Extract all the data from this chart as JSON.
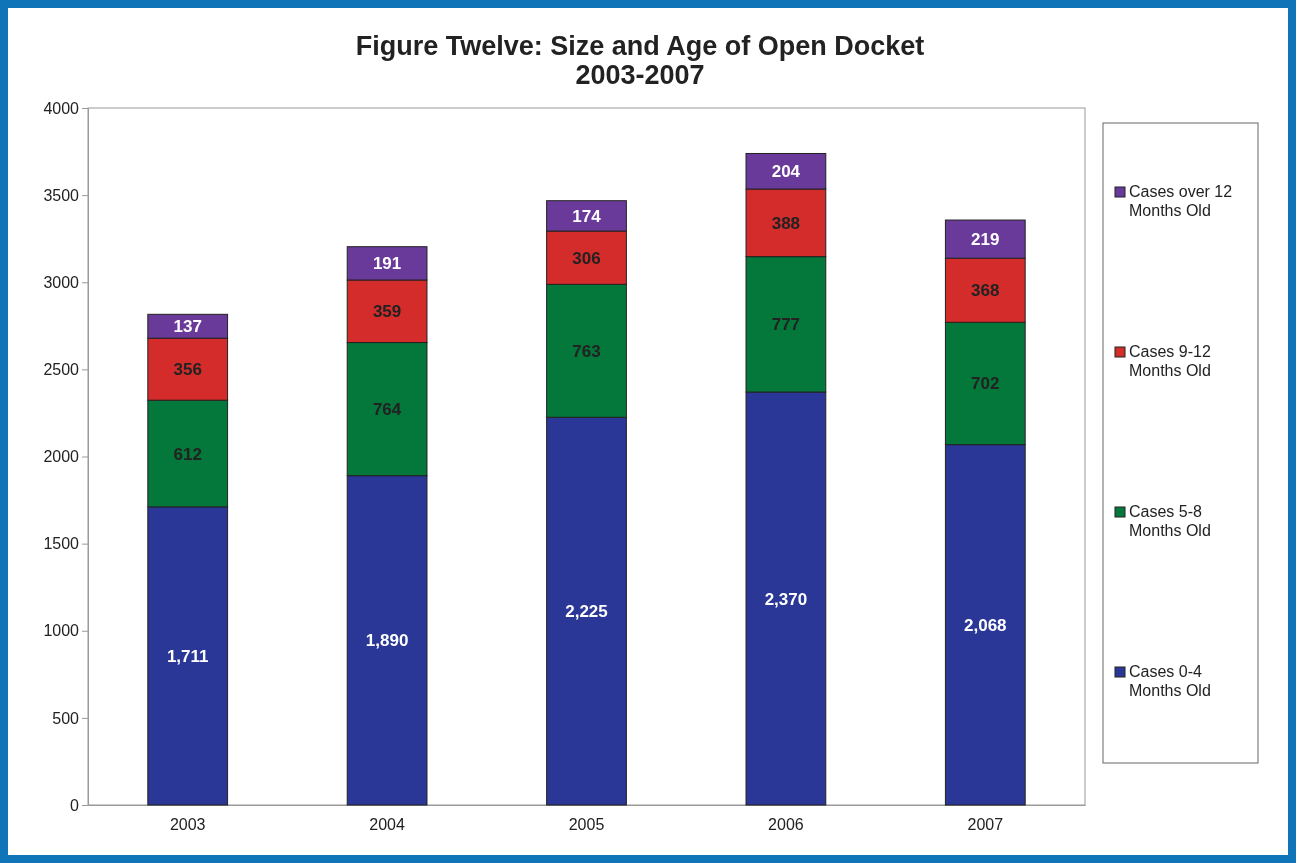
{
  "chart_data": {
    "type": "bar",
    "title": "Figure Twelve: Size and Age of Open Docket\n2003-2007",
    "categories": [
      "2003",
      "2004",
      "2005",
      "2006",
      "2007"
    ],
    "stacked": true,
    "legend": "right",
    "ylim": [
      0,
      4000
    ],
    "yticks": [
      0,
      500,
      1000,
      1500,
      2000,
      2500,
      3000,
      3500,
      4000
    ],
    "series": [
      {
        "name": "Cases 0-4 Months Old",
        "color": "#2b3797",
        "values": [
          1711,
          1890,
          2225,
          2370,
          2068
        ],
        "value_labels": [
          "1,711",
          "1,890",
          "2,225",
          "2,370",
          "2,068"
        ]
      },
      {
        "name": "Cases 5-8 Months Old",
        "color": "#04773a",
        "values": [
          612,
          764,
          763,
          777,
          702
        ],
        "value_labels": [
          "612",
          "764",
          "763",
          "777",
          "702"
        ]
      },
      {
        "name": "Cases 9-12 Months Old",
        "color": "#d42b2b",
        "values": [
          356,
          359,
          306,
          388,
          368
        ],
        "value_labels": [
          "356",
          "359",
          "306",
          "388",
          "368"
        ]
      },
      {
        "name": "Cases over 12 Months Old",
        "color": "#6a3a9a",
        "values": [
          137,
          191,
          174,
          204,
          219
        ],
        "value_labels": [
          "137",
          "191",
          "174",
          "204",
          "219"
        ]
      }
    ]
  }
}
